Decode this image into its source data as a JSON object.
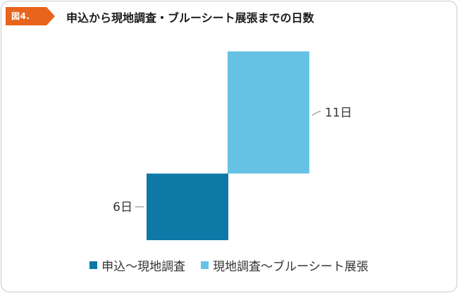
{
  "figure": {
    "label": "図4.",
    "title": "申込から現地調査・ブルーシート展張までの日数",
    "badge_color": "#e8641c"
  },
  "chart_data": {
    "type": "bar",
    "stacked": "waterfall",
    "categories": [
      "申込〜現地調査",
      "現地調査〜ブルーシート展張"
    ],
    "series": [
      {
        "name": "申込〜現地調査",
        "value": 6,
        "start": 0,
        "color": "#0e78a6",
        "label": "6日"
      },
      {
        "name": "現地調査〜ブルーシート展張",
        "value": 11,
        "start": 6,
        "color": "#66c2e4",
        "label": "11日"
      }
    ],
    "ylim": [
      0,
      17
    ],
    "grid": false,
    "legend_position": "bottom"
  }
}
